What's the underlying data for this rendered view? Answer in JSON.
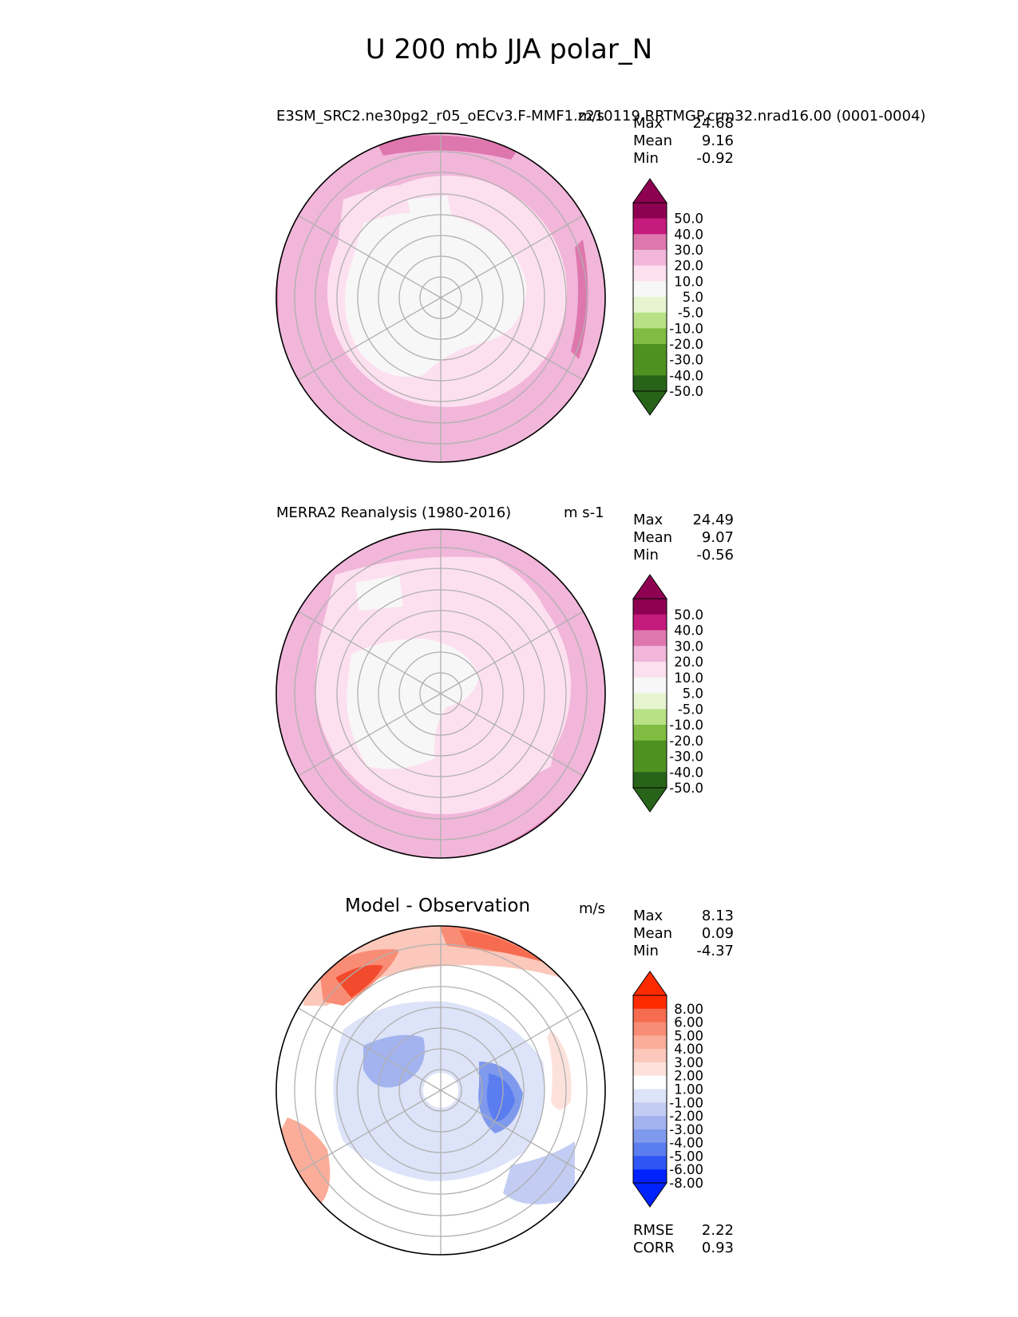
{
  "title": "U 200 mb JJA polar_N",
  "colors": {
    "grid": "#b0b0b0",
    "coast": "#222222",
    "field_levels": [
      "#276419",
      "#4d9221",
      "#7fbc41",
      "#b8e186",
      "#e6f5d0",
      "#f7f7f7",
      "#fde0ef",
      "#f1b6da",
      "#de77ae",
      "#c51b7d",
      "#8e0152"
    ],
    "diff_levels": [
      "#0022ff",
      "#2d56f4",
      "#5a7df0",
      "#7f99ec",
      "#a3b3ef",
      "#c3cdf3",
      "#dde3f8",
      "#ffffff",
      "#fde2dc",
      "#fbc8bb",
      "#fbad9a",
      "#f98c75",
      "#f56c51",
      "#f24a2c",
      "#ff2b00"
    ]
  },
  "panels": {
    "test": {
      "title_left": "E3SM_SRC2.ne30pg2_r05_oECv3.F-MMF1.z210119.RRTMGP.crm32.nrad16.00 (0001-0004)",
      "title_right": "m/s",
      "stats": {
        "max_label": "Max",
        "max": "24.68",
        "mean_label": "Mean",
        "mean": "9.16",
        "min_label": "Min",
        "min": "-0.92"
      }
    },
    "ref": {
      "title_left": "MERRA2 Reanalysis (1980-2016)",
      "title_right": "m s-1",
      "stats": {
        "max_label": "Max",
        "max": "24.49",
        "mean_label": "Mean",
        "mean": "9.07",
        "min_label": "Min",
        "min": "-0.56"
      }
    },
    "diff": {
      "title_center": "Model - Observation",
      "title_right": "m/s",
      "stats": {
        "max_label": "Max",
        "max": "8.13",
        "mean_label": "Mean",
        "mean": "0.09",
        "min_label": "Min",
        "min": "-4.37"
      },
      "rmse_label": "RMSE",
      "rmse": "2.22",
      "corr_label": "CORR",
      "corr": "0.93"
    }
  },
  "chart_data": [
    {
      "type": "heatmap",
      "projection": "north polar stereographic",
      "title": "E3SM_SRC2.ne30pg2_r05_oECv3.F-MMF1.z210119.RRTMGP.crm32.nrad16.00 (0001-0004)",
      "units": "m/s",
      "variable": "U 200 mb JJA",
      "max": 24.68,
      "mean": 9.16,
      "min": -0.92,
      "colorbar_levels": [
        "50.0",
        "40.0",
        "30.0",
        "20.0",
        "10.0",
        "5.0",
        "-5.0",
        "-10.0",
        "-20.0",
        "-30.0",
        "-40.0",
        "-50.0"
      ],
      "colorbar_extend": "both"
    },
    {
      "type": "heatmap",
      "projection": "north polar stereographic",
      "title": "MERRA2 Reanalysis (1980-2016)",
      "units": "m s-1",
      "variable": "U 200 mb JJA",
      "max": 24.49,
      "mean": 9.07,
      "min": -0.56,
      "colorbar_levels": [
        "50.0",
        "40.0",
        "30.0",
        "20.0",
        "10.0",
        "5.0",
        "-5.0",
        "-10.0",
        "-20.0",
        "-30.0",
        "-40.0",
        "-50.0"
      ],
      "colorbar_extend": "both"
    },
    {
      "type": "heatmap",
      "projection": "north polar stereographic",
      "title": "Model - Observation",
      "units": "m/s",
      "max": 8.13,
      "mean": 0.09,
      "min": -4.37,
      "rmse": 2.22,
      "corr": 0.93,
      "colorbar_levels": [
        "8.00",
        "6.00",
        "5.00",
        "4.00",
        "3.00",
        "2.00",
        "1.00",
        "-1.00",
        "-2.00",
        "-3.00",
        "-4.00",
        "-5.00",
        "-6.00",
        "-8.00"
      ],
      "colorbar_extend": "both"
    }
  ]
}
